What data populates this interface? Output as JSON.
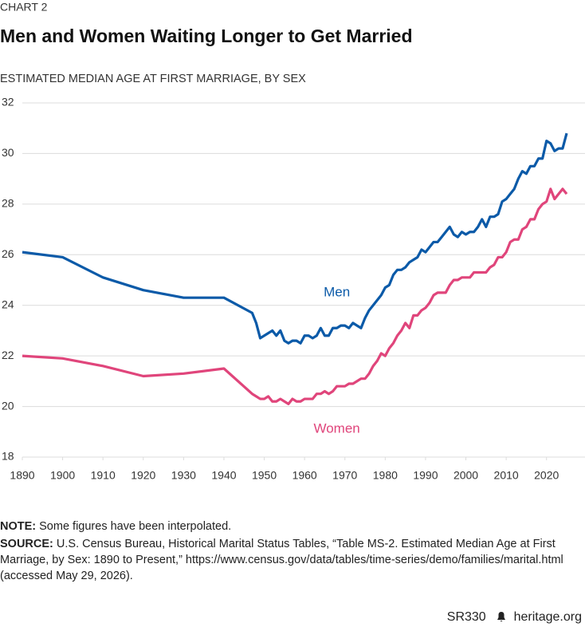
{
  "chart_data": {
    "type": "line",
    "kicker": "CHART 2",
    "title": "Men and Women Waiting Longer to Get Married",
    "subtitle": "ESTIMATED MEDIAN AGE AT FIRST MARRIAGE, BY SEX",
    "x": [
      1890,
      1900,
      1910,
      1920,
      1930,
      1940,
      1947,
      1948,
      1949,
      1950,
      1951,
      1952,
      1953,
      1954,
      1955,
      1956,
      1957,
      1958,
      1959,
      1960,
      1961,
      1962,
      1963,
      1964,
      1965,
      1966,
      1967,
      1968,
      1969,
      1970,
      1971,
      1972,
      1973,
      1974,
      1975,
      1976,
      1977,
      1978,
      1979,
      1980,
      1981,
      1982,
      1983,
      1984,
      1985,
      1986,
      1987,
      1988,
      1989,
      1990,
      1991,
      1992,
      1993,
      1994,
      1995,
      1996,
      1997,
      1998,
      1999,
      2000,
      2001,
      2002,
      2003,
      2004,
      2005,
      2006,
      2007,
      2008,
      2009,
      2010,
      2011,
      2012,
      2013,
      2014,
      2015,
      2016,
      2017,
      2018,
      2019,
      2020,
      2021,
      2022,
      2023,
      2024,
      2025
    ],
    "series": [
      {
        "name": "Men",
        "color": "#0b5aa8",
        "values": [
          26.1,
          25.9,
          25.1,
          24.6,
          24.3,
          24.3,
          23.7,
          23.3,
          22.7,
          22.8,
          22.9,
          23.0,
          22.8,
          23.0,
          22.6,
          22.5,
          22.6,
          22.6,
          22.5,
          22.8,
          22.8,
          22.7,
          22.8,
          23.1,
          22.8,
          22.8,
          23.1,
          23.1,
          23.2,
          23.2,
          23.1,
          23.3,
          23.2,
          23.1,
          23.5,
          23.8,
          24.0,
          24.2,
          24.4,
          24.7,
          24.8,
          25.2,
          25.4,
          25.4,
          25.5,
          25.7,
          25.8,
          25.9,
          26.2,
          26.1,
          26.3,
          26.5,
          26.5,
          26.7,
          26.9,
          27.1,
          26.8,
          26.7,
          26.9,
          26.8,
          26.9,
          26.9,
          27.1,
          27.4,
          27.1,
          27.5,
          27.5,
          27.6,
          28.1,
          28.2,
          28.4,
          28.6,
          29.0,
          29.3,
          29.2,
          29.5,
          29.5,
          29.8,
          29.8,
          30.5,
          30.4,
          30.1,
          30.2,
          30.2,
          30.8
        ]
      },
      {
        "name": "Women",
        "color": "#e0457b",
        "values": [
          22.0,
          21.9,
          21.6,
          21.2,
          21.3,
          21.5,
          20.5,
          20.4,
          20.3,
          20.3,
          20.4,
          20.2,
          20.2,
          20.3,
          20.2,
          20.1,
          20.3,
          20.2,
          20.2,
          20.3,
          20.3,
          20.3,
          20.5,
          20.5,
          20.6,
          20.5,
          20.6,
          20.8,
          20.8,
          20.8,
          20.9,
          20.9,
          21.0,
          21.1,
          21.1,
          21.3,
          21.6,
          21.8,
          22.1,
          22.0,
          22.3,
          22.5,
          22.8,
          23.0,
          23.3,
          23.1,
          23.6,
          23.6,
          23.8,
          23.9,
          24.1,
          24.4,
          24.5,
          24.5,
          24.5,
          24.8,
          25.0,
          25.0,
          25.1,
          25.1,
          25.1,
          25.3,
          25.3,
          25.3,
          25.3,
          25.5,
          25.6,
          25.9,
          25.9,
          26.1,
          26.5,
          26.6,
          26.6,
          27.0,
          27.1,
          27.4,
          27.4,
          27.8,
          28.0,
          28.1,
          28.6,
          28.2,
          28.4,
          28.6,
          28.4
        ]
      }
    ],
    "xlim": [
      1890,
      2025
    ],
    "xticks": [
      1890,
      1900,
      1910,
      1920,
      1930,
      1940,
      1950,
      1960,
      1970,
      1980,
      1990,
      2000,
      2010,
      2020
    ],
    "ylim": [
      18,
      32
    ],
    "yticks": [
      18,
      20,
      22,
      24,
      26,
      28,
      30,
      32
    ],
    "grid": true,
    "series_labels": [
      {
        "x": 1968,
        "y": 24.5
      },
      {
        "x": 1968,
        "y": 19.1
      }
    ],
    "note_label": "NOTE:",
    "note": "Some figures have been interpolated.",
    "source_label": "SOURCE:",
    "source": "U.S. Census Bureau, Historical Marital Status Tables, “Table MS-2. Estimated Median Age at First Marriage, by Sex: 1890 to Present,” https://www.census.gov/data/tables/time-series/demo/families/marital.html (accessed May 29, 2026).",
    "report_id": "SR330",
    "publisher": "heritage.org"
  }
}
